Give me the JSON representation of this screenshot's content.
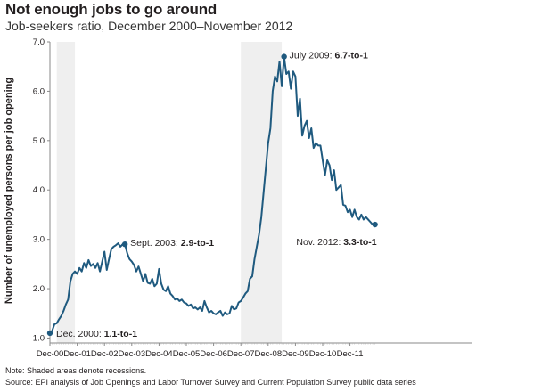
{
  "title": "Not enough jobs to go around",
  "subtitle": "Job-seekers ratio, December 2000–November 2012",
  "notes": {
    "note": "Note: Shaded areas denote recessions.",
    "source": "Source: EPI analysis of Job Openings and Labor Turnover Survey and Current Population Survey public data series"
  },
  "colors": {
    "line": "#1f5a7f",
    "recession": "#efefef",
    "axis": "#8a8a8a"
  },
  "chart_data": {
    "type": "line",
    "ylabel": "Number of unemployed persons per job opening",
    "xlabel": "",
    "ylim": [
      0.9,
      7.0
    ],
    "x_range": [
      "2000-12",
      "2012-12"
    ],
    "yticks": [
      "1.0",
      "2.0",
      "3.0",
      "4.0",
      "5.0",
      "6.0",
      "7.0"
    ],
    "yticks_values": [
      1,
      2,
      3,
      4,
      5,
      6,
      7
    ],
    "xticks": [
      "Dec-00",
      "Dec-01",
      "Dec-02",
      "Dec-03",
      "Dec-04",
      "Dec-05",
      "Dec-06",
      "Dec-07",
      "Dec-08",
      "Dec-09",
      "Dec-10",
      "Dec-11"
    ],
    "recessions": [
      [
        "2001-03",
        "2001-11"
      ],
      [
        "2007-12",
        "2009-06"
      ]
    ],
    "grid": false,
    "series": [
      {
        "values": [
          [
            "2000-12",
            1.1
          ],
          [
            "2001-01",
            1.15
          ],
          [
            "2001-02",
            1.28
          ],
          [
            "2001-03",
            1.3
          ],
          [
            "2001-04",
            1.38
          ],
          [
            "2001-05",
            1.45
          ],
          [
            "2001-06",
            1.55
          ],
          [
            "2001-07",
            1.68
          ],
          [
            "2001-08",
            1.78
          ],
          [
            "2001-09",
            2.15
          ],
          [
            "2001-10",
            2.3
          ],
          [
            "2001-11",
            2.35
          ],
          [
            "2001-12",
            2.3
          ],
          [
            "2002-01",
            2.42
          ],
          [
            "2002-02",
            2.35
          ],
          [
            "2002-03",
            2.52
          ],
          [
            "2002-04",
            2.42
          ],
          [
            "2002-05",
            2.58
          ],
          [
            "2002-06",
            2.46
          ],
          [
            "2002-07",
            2.5
          ],
          [
            "2002-08",
            2.42
          ],
          [
            "2002-09",
            2.52
          ],
          [
            "2002-10",
            2.35
          ],
          [
            "2002-11",
            2.55
          ],
          [
            "2002-12",
            2.75
          ],
          [
            "2003-01",
            2.38
          ],
          [
            "2003-02",
            2.6
          ],
          [
            "2003-03",
            2.8
          ],
          [
            "2003-04",
            2.85
          ],
          [
            "2003-05",
            2.88
          ],
          [
            "2003-06",
            2.92
          ],
          [
            "2003-07",
            2.85
          ],
          [
            "2003-08",
            2.9
          ],
          [
            "2003-09",
            2.9
          ],
          [
            "2003-10",
            2.72
          ],
          [
            "2003-11",
            2.6
          ],
          [
            "2003-12",
            2.55
          ],
          [
            "2004-01",
            2.48
          ],
          [
            "2004-02",
            2.35
          ],
          [
            "2004-03",
            2.45
          ],
          [
            "2004-04",
            2.3
          ],
          [
            "2004-05",
            2.15
          ],
          [
            "2004-06",
            2.3
          ],
          [
            "2004-07",
            2.12
          ],
          [
            "2004-08",
            2.1
          ],
          [
            "2004-09",
            2.2
          ],
          [
            "2004-10",
            2.05
          ],
          [
            "2004-11",
            2.1
          ],
          [
            "2004-12",
            2.4
          ],
          [
            "2005-01",
            2.1
          ],
          [
            "2005-02",
            1.98
          ],
          [
            "2005-03",
            1.95
          ],
          [
            "2005-04",
            2.05
          ],
          [
            "2005-05",
            1.9
          ],
          [
            "2005-06",
            1.85
          ],
          [
            "2005-07",
            1.78
          ],
          [
            "2005-08",
            1.8
          ],
          [
            "2005-09",
            1.75
          ],
          [
            "2005-10",
            1.78
          ],
          [
            "2005-11",
            1.72
          ],
          [
            "2005-12",
            1.7
          ],
          [
            "2006-01",
            1.65
          ],
          [
            "2006-02",
            1.68
          ],
          [
            "2006-03",
            1.6
          ],
          [
            "2006-04",
            1.62
          ],
          [
            "2006-05",
            1.58
          ],
          [
            "2006-06",
            1.62
          ],
          [
            "2006-07",
            1.55
          ],
          [
            "2006-08",
            1.75
          ],
          [
            "2006-09",
            1.62
          ],
          [
            "2006-10",
            1.52
          ],
          [
            "2006-11",
            1.55
          ],
          [
            "2006-12",
            1.5
          ],
          [
            "2007-01",
            1.48
          ],
          [
            "2007-02",
            1.52
          ],
          [
            "2007-03",
            1.55
          ],
          [
            "2007-04",
            1.45
          ],
          [
            "2007-05",
            1.52
          ],
          [
            "2007-06",
            1.48
          ],
          [
            "2007-07",
            1.5
          ],
          [
            "2007-08",
            1.65
          ],
          [
            "2007-09",
            1.58
          ],
          [
            "2007-10",
            1.6
          ],
          [
            "2007-11",
            1.72
          ],
          [
            "2007-12",
            1.75
          ],
          [
            "2008-01",
            1.82
          ],
          [
            "2008-02",
            1.9
          ],
          [
            "2008-03",
            1.95
          ],
          [
            "2008-04",
            2.2
          ],
          [
            "2008-05",
            2.25
          ],
          [
            "2008-06",
            2.6
          ],
          [
            "2008-07",
            2.85
          ],
          [
            "2008-08",
            3.1
          ],
          [
            "2008-09",
            3.45
          ],
          [
            "2008-10",
            3.95
          ],
          [
            "2008-11",
            4.45
          ],
          [
            "2008-12",
            4.95
          ],
          [
            "2009-01",
            5.25
          ],
          [
            "2009-02",
            6.0
          ],
          [
            "2009-03",
            6.3
          ],
          [
            "2009-04",
            6.2
          ],
          [
            "2009-05",
            6.6
          ],
          [
            "2009-06",
            6.1
          ],
          [
            "2009-07",
            6.7
          ],
          [
            "2009-08",
            6.35
          ],
          [
            "2009-09",
            6.4
          ],
          [
            "2009-10",
            6.05
          ],
          [
            "2009-11",
            6.4
          ],
          [
            "2009-12",
            6.3
          ],
          [
            "2010-01",
            5.5
          ],
          [
            "2010-02",
            5.85
          ],
          [
            "2010-03",
            5.1
          ],
          [
            "2010-04",
            5.3
          ],
          [
            "2010-05",
            5.4
          ],
          [
            "2010-06",
            5.05
          ],
          [
            "2010-07",
            5.25
          ],
          [
            "2010-08",
            4.85
          ],
          [
            "2010-09",
            4.95
          ],
          [
            "2010-10",
            4.9
          ],
          [
            "2010-11",
            4.9
          ],
          [
            "2010-12",
            4.6
          ],
          [
            "2011-01",
            4.3
          ],
          [
            "2011-02",
            4.6
          ],
          [
            "2011-03",
            4.5
          ],
          [
            "2011-04",
            4.2
          ],
          [
            "2011-05",
            4.4
          ],
          [
            "2011-06",
            4.0
          ],
          [
            "2011-07",
            4.05
          ],
          [
            "2011-08",
            4.1
          ],
          [
            "2011-09",
            3.7
          ],
          [
            "2011-10",
            3.68
          ],
          [
            "2011-11",
            3.55
          ],
          [
            "2011-12",
            3.6
          ],
          [
            "2012-01",
            3.45
          ],
          [
            "2012-02",
            3.6
          ],
          [
            "2012-03",
            3.45
          ],
          [
            "2012-04",
            3.4
          ],
          [
            "2012-05",
            3.5
          ],
          [
            "2012-06",
            3.4
          ],
          [
            "2012-07",
            3.45
          ],
          [
            "2012-08",
            3.4
          ],
          [
            "2012-09",
            3.35
          ],
          [
            "2012-10",
            3.3
          ],
          [
            "2012-11",
            3.3
          ]
        ]
      }
    ],
    "annotations": [
      {
        "date": "2000-12",
        "value": 1.1,
        "label": "Dec. 2000: ",
        "bold": "1.1-to-1"
      },
      {
        "date": "2003-09",
        "value": 2.9,
        "label": "Sept. 2003: ",
        "bold": "2.9-to-1"
      },
      {
        "date": "2009-07",
        "value": 6.7,
        "label": "July 2009: ",
        "bold": "6.7-to-1"
      },
      {
        "date": "2012-11",
        "value": 3.3,
        "label": "Nov. 2012: ",
        "bold": "3.3-to-1"
      }
    ]
  }
}
